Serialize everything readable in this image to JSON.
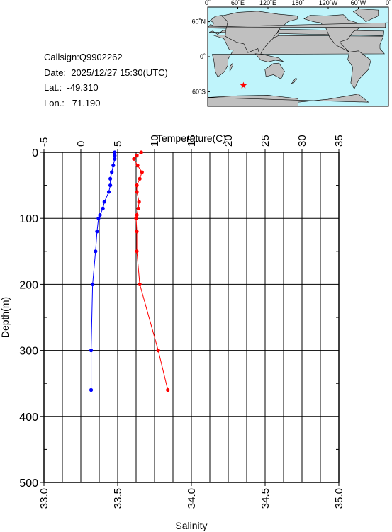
{
  "info": {
    "callsign": "Callsign:Q9902262",
    "date": "Date:  2025/12/27 15:30(UTC)",
    "lat": "Lat.:  -49.310",
    "lon": "Lon.:   71.190"
  },
  "map": {
    "lon_labels": [
      "0˚",
      "60˚E",
      "120˚E",
      "180˚",
      "120˚W",
      "60˚W",
      "0˚"
    ],
    "lat_labels": [
      "60˚N",
      "0˚",
      "60˚S"
    ],
    "marker": {
      "lat": -49.31,
      "lon": 71.19
    },
    "colors": {
      "ocean": "#bff4fb",
      "land": "#c0c0c0",
      "marker": "#ff0000"
    }
  },
  "chart_data": {
    "type": "line",
    "top_axis": {
      "label": "Temperature(C)",
      "range": [
        -5,
        35
      ],
      "ticks": [
        -5,
        0,
        5,
        10,
        15,
        20,
        25,
        30,
        35
      ]
    },
    "bottom_axis": {
      "label": "Salinity",
      "range": [
        33.0,
        35.0
      ],
      "ticks": [
        "33.0",
        "33.5",
        "34.0",
        "34.5",
        "35.0"
      ]
    },
    "y_axis": {
      "label": "Depth(m)",
      "range": [
        0,
        500
      ],
      "inverted": true,
      "ticks": [
        0,
        100,
        200,
        300,
        400,
        500
      ]
    },
    "grid": true,
    "series": [
      {
        "color": "#ff0000",
        "axis": "top",
        "points": [
          {
            "depth": 0,
            "value": 8.2
          },
          {
            "depth": 5,
            "value": 7.6
          },
          {
            "depth": 10,
            "value": 7.2
          },
          {
            "depth": 20,
            "value": 7.7
          },
          {
            "depth": 30,
            "value": 8.3
          },
          {
            "depth": 40,
            "value": 8.0
          },
          {
            "depth": 50,
            "value": 7.6
          },
          {
            "depth": 60,
            "value": 7.6
          },
          {
            "depth": 75,
            "value": 7.9
          },
          {
            "depth": 85,
            "value": 7.8
          },
          {
            "depth": 95,
            "value": 7.6
          },
          {
            "depth": 100,
            "value": 7.5
          },
          {
            "depth": 120,
            "value": 7.6
          },
          {
            "depth": 150,
            "value": 7.6
          },
          {
            "depth": 200,
            "value": 8.0
          },
          {
            "depth": 300,
            "value": 10.5
          },
          {
            "depth": 360,
            "value": 11.8
          }
        ]
      },
      {
        "color": "#0000ff",
        "axis": "bottom",
        "points": [
          {
            "depth": 0,
            "value": 33.48
          },
          {
            "depth": 5,
            "value": 33.48
          },
          {
            "depth": 10,
            "value": 33.48
          },
          {
            "depth": 20,
            "value": 33.47
          },
          {
            "depth": 30,
            "value": 33.46
          },
          {
            "depth": 40,
            "value": 33.45
          },
          {
            "depth": 50,
            "value": 33.45
          },
          {
            "depth": 60,
            "value": 33.44
          },
          {
            "depth": 75,
            "value": 33.41
          },
          {
            "depth": 85,
            "value": 33.4
          },
          {
            "depth": 95,
            "value": 33.38
          },
          {
            "depth": 100,
            "value": 33.37
          },
          {
            "depth": 120,
            "value": 33.36
          },
          {
            "depth": 150,
            "value": 33.35
          },
          {
            "depth": 200,
            "value": 33.33
          },
          {
            "depth": 300,
            "value": 33.32
          },
          {
            "depth": 360,
            "value": 33.32
          }
        ]
      }
    ]
  }
}
